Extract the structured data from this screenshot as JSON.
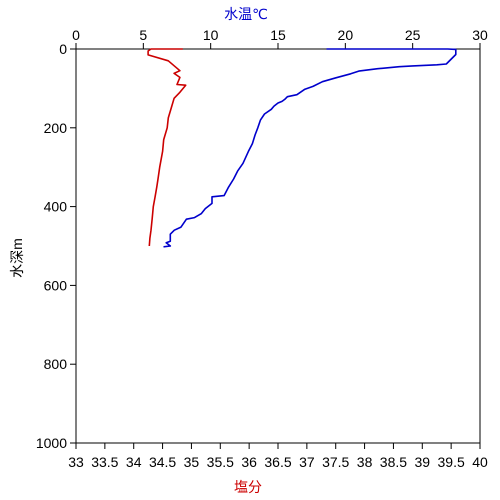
{
  "chart_data": {
    "type": "line",
    "axes": {
      "depth": {
        "label": "水深m",
        "range": [
          0,
          1000
        ],
        "ticks": [
          0,
          200,
          400,
          600,
          800,
          1000
        ],
        "inverted": true,
        "side": "left"
      },
      "temperature": {
        "label": "水温℃",
        "range": [
          0,
          30
        ],
        "ticks": [
          0,
          5,
          10,
          15,
          20,
          25,
          30
        ],
        "side": "top",
        "color": "#0000cc"
      },
      "salinity": {
        "label": "塩分",
        "range": [
          33,
          40
        ],
        "ticks": [
          "33",
          "33.5",
          "34",
          "34.5",
          "35",
          "35.5",
          "36",
          "36.5",
          "37",
          "37.5",
          "38",
          "38.5",
          "39",
          "39.5",
          "40"
        ],
        "side": "bottom",
        "color": "#cc0000"
      }
    },
    "series": [
      {
        "axis": "temperature",
        "color": "#0000cc",
        "points": [
          [
            18.6,
            0
          ],
          [
            19.5,
            0
          ],
          [
            21,
            0
          ],
          [
            25,
            0
          ],
          [
            27.6,
            0
          ],
          [
            28.2,
            1
          ],
          [
            28.2,
            8
          ],
          [
            28.2,
            14
          ],
          [
            27.5,
            38
          ],
          [
            26.8,
            40
          ],
          [
            25,
            43
          ],
          [
            24,
            45
          ],
          [
            22.4,
            50
          ],
          [
            21,
            56
          ],
          [
            20.4,
            63
          ],
          [
            19.3,
            73
          ],
          [
            18.3,
            83
          ],
          [
            17.6,
            95
          ],
          [
            17,
            102
          ],
          [
            16.4,
            116
          ],
          [
            15.7,
            121
          ],
          [
            15.5,
            128
          ],
          [
            15.3,
            133
          ],
          [
            15.0,
            137
          ],
          [
            14.7,
            145
          ],
          [
            14.5,
            153
          ],
          [
            14.0,
            165
          ],
          [
            13.7,
            180
          ],
          [
            13.5,
            200
          ],
          [
            13.3,
            218
          ],
          [
            13.1,
            240
          ],
          [
            12.8,
            260
          ],
          [
            12.4,
            290
          ],
          [
            12.0,
            310
          ],
          [
            11.7,
            330
          ],
          [
            11.3,
            352
          ],
          [
            11.0,
            372
          ],
          [
            10.1,
            375
          ],
          [
            10.1,
            392
          ],
          [
            9.6,
            405
          ],
          [
            9.3,
            418
          ],
          [
            8.8,
            428
          ],
          [
            8.2,
            432
          ],
          [
            7.8,
            452
          ],
          [
            7.3,
            460
          ],
          [
            7.0,
            470
          ],
          [
            7.0,
            488
          ],
          [
            6.7,
            492
          ],
          [
            7.0,
            500
          ],
          [
            6.5,
            502
          ]
        ]
      },
      {
        "axis": "salinity",
        "color": "#cc0000",
        "points": [
          [
            34.85,
            0
          ],
          [
            34.7,
            0
          ],
          [
            34.3,
            0
          ],
          [
            34.25,
            5
          ],
          [
            34.25,
            15
          ],
          [
            34.6,
            30
          ],
          [
            34.8,
            55
          ],
          [
            34.7,
            62
          ],
          [
            34.8,
            72
          ],
          [
            34.75,
            90
          ],
          [
            34.9,
            92
          ],
          [
            34.8,
            110
          ],
          [
            34.7,
            125
          ],
          [
            34.65,
            150
          ],
          [
            34.6,
            175
          ],
          [
            34.58,
            200
          ],
          [
            34.52,
            230
          ],
          [
            34.5,
            260
          ],
          [
            34.45,
            300
          ],
          [
            34.42,
            330
          ],
          [
            34.4,
            350
          ],
          [
            34.37,
            375
          ],
          [
            34.34,
            400
          ],
          [
            34.32,
            430
          ],
          [
            34.3,
            460
          ],
          [
            34.28,
            480
          ],
          [
            34.27,
            500
          ]
        ]
      }
    ],
    "grid": false,
    "legend": "none"
  }
}
